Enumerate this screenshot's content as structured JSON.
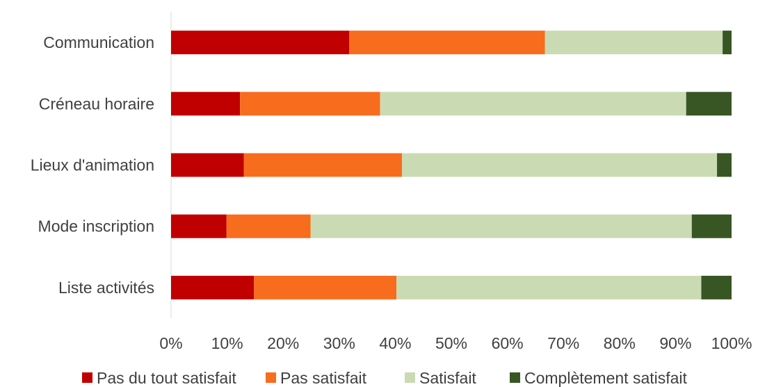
{
  "chart_data": {
    "type": "bar",
    "orientation": "horizontal",
    "stacked": "percent",
    "categories": [
      "Communication",
      "Créneau horaire",
      "Lieux d'animation",
      "Mode inscription",
      "Liste activités"
    ],
    "series": [
      {
        "name": "Pas du tout satisfait",
        "color": "#c00000",
        "values": [
          31.8,
          12.3,
          13.0,
          9.9,
          14.8
        ]
      },
      {
        "name": "Pas satisfait",
        "color": "#f86c1e",
        "values": [
          34.9,
          25.0,
          28.2,
          15.0,
          25.4
        ]
      },
      {
        "name": "Satisfait",
        "color": "#cadbb3",
        "values": [
          31.7,
          54.6,
          56.2,
          68.0,
          54.4
        ]
      },
      {
        "name": "Complètement satisfait",
        "color": "#375623",
        "values": [
          1.6,
          8.1,
          2.6,
          7.1,
          5.4
        ]
      }
    ],
    "xticks": [
      "0%",
      "10%",
      "20%",
      "30%",
      "40%",
      "50%",
      "60%",
      "70%",
      "80%",
      "90%",
      "100%"
    ],
    "xlim": [
      0,
      100
    ],
    "grid": false,
    "legend": "bottom"
  }
}
